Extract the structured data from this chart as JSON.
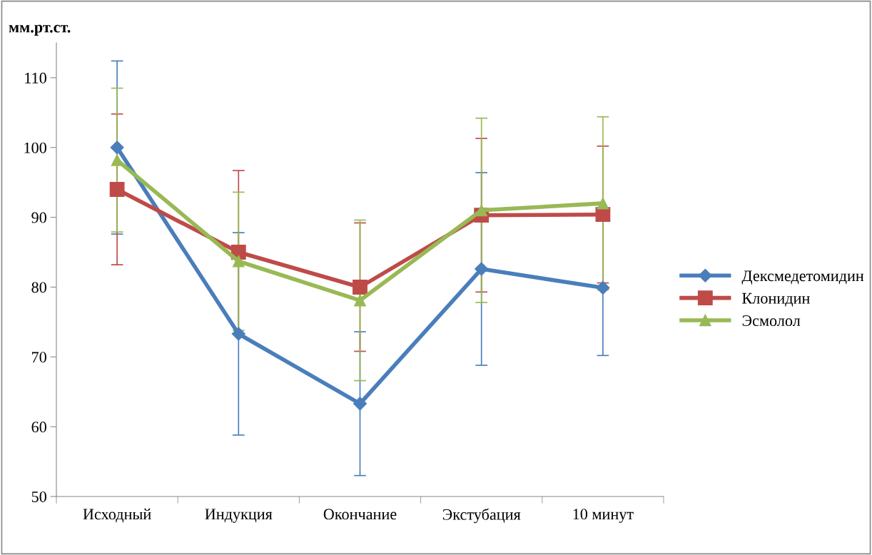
{
  "chart_data": {
    "type": "line",
    "ylabel": "мм.рт.ст.",
    "categories": [
      "Исходный",
      "Индукция",
      "Окончание",
      "Экстубация",
      "10 минут"
    ],
    "series": [
      {
        "name": "Дексмедетомидин",
        "color": "#4a7ebb",
        "marker": "diamond",
        "values": [
          100,
          73.3,
          63.3,
          82.6,
          79.9
        ],
        "errors": [
          12.4,
          14.5,
          10.3,
          13.8,
          9.7
        ]
      },
      {
        "name": "Клонидин",
        "color": "#be4b48",
        "marker": "square",
        "values": [
          94,
          85,
          80,
          90.3,
          90.4
        ],
        "errors": [
          10.8,
          11.7,
          9.2,
          11,
          9.8
        ]
      },
      {
        "name": "Эсмолол",
        "color": "#98b954",
        "marker": "triangle",
        "values": [
          98.2,
          83.7,
          78.1,
          91,
          92
        ],
        "errors": [
          10.3,
          9.9,
          11.5,
          13.2,
          12.4
        ]
      }
    ],
    "ylim": [
      50,
      115
    ],
    "yticks": [
      50,
      60,
      70,
      80,
      90,
      100,
      110
    ],
    "grid": false,
    "legend": "right",
    "line_style": "solid"
  }
}
